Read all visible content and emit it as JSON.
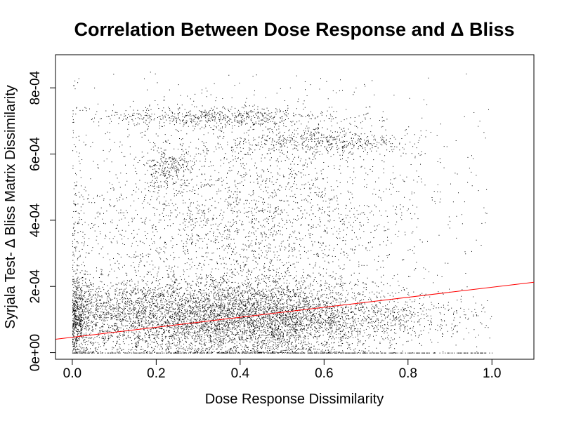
{
  "chart_data": {
    "type": "scatter",
    "title": "Correlation Between Dose Response and Δ Bliss",
    "xlabel": "Dose Response Dissimilarity",
    "ylabel": "Syrjala Test- Δ Bliss Matrix Dissimilarity",
    "xlim": [
      -0.04,
      1.1
    ],
    "ylim": [
      -2e-05,
      0.0009
    ],
    "x_ticks": [
      0.0,
      0.2,
      0.4,
      0.6,
      0.8,
      1.0
    ],
    "x_tick_labels": [
      "0.0",
      "0.2",
      "0.4",
      "0.6",
      "0.8",
      "1.0"
    ],
    "y_ticks": [
      0.0,
      0.0002,
      0.0004,
      0.0006,
      0.0008
    ],
    "y_tick_labels": [
      "0e+00",
      "2e-04",
      "4e-04",
      "6e-04",
      "8e-04"
    ],
    "grid": false,
    "legend": "none",
    "point_color": "#000000",
    "regression_line": {
      "intercept": 4.65e-05,
      "slope": 0.000151,
      "color": "#ff0000"
    },
    "point_clusters": [
      {
        "x_center": 0.22,
        "x_spread": 0.2,
        "y_center": 0.00011,
        "y_spread": 6e-05,
        "share": 0.34
      },
      {
        "x_center": 0.48,
        "x_spread": 0.12,
        "y_center": 0.0001,
        "y_spread": 6e-05,
        "share": 0.2
      },
      {
        "x_center": 0.75,
        "x_spread": 0.12,
        "y_center": 0.00011,
        "y_spread": 4e-05,
        "share": 0.05
      },
      {
        "x_center": 0.4,
        "x_spread": 0.22,
        "y_center": 0.00035,
        "y_spread": 0.00012,
        "share": 0.16
      },
      {
        "x_center": 0.42,
        "x_spread": 0.22,
        "y_center": 0.00057,
        "y_spread": 0.00013,
        "share": 0.09
      },
      {
        "x_center": 0.35,
        "x_spread": 0.14,
        "y_center": 0.00071,
        "y_spread": 1.5e-05,
        "share": 0.05
      },
      {
        "x_center": 0.6,
        "x_spread": 0.1,
        "y_center": 0.00064,
        "y_spread": 2e-05,
        "share": 0.04
      },
      {
        "x_center": 0.23,
        "x_spread": 0.03,
        "y_center": 0.00056,
        "y_spread": 3e-05,
        "share": 0.02
      },
      {
        "x_center": 0.5,
        "x_spread": 0.3,
        "y_center": 0.0,
        "y_spread": 0.0,
        "share": 0.05
      }
    ]
  }
}
